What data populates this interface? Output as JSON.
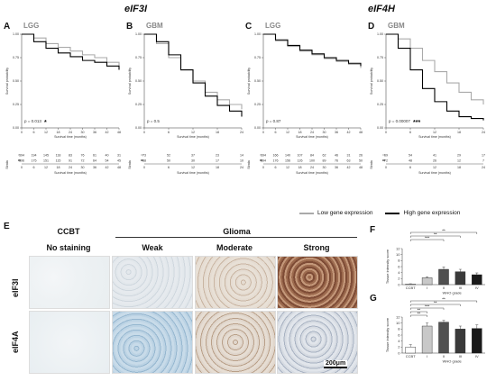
{
  "titles": {
    "left": "eIF3I",
    "right": "eIF4H"
  },
  "panels": [
    {
      "letter": "A",
      "label": "LGG",
      "pvalue": "p = 0.013",
      "stars": "*",
      "risk_low": [
        "194",
        "194",
        "145",
        "118",
        "83",
        "76",
        "61",
        "40",
        "31"
      ],
      "risk_high": [
        "196",
        "175",
        "151",
        "115",
        "91",
        "72",
        "64",
        "54",
        "45"
      ],
      "xticks": [
        "0",
        "6",
        "12",
        "18",
        "24",
        "30",
        "36",
        "42",
        "48"
      ],
      "ytitle": "Survival probability",
      "xtitle": "Survival time (months)"
    },
    {
      "letter": "B",
      "label": "GBM",
      "pvalue": "p = 0.5",
      "stars": "",
      "risk_low": [
        "73",
        "52",
        "37",
        "23",
        "14"
      ],
      "risk_high": [
        "68",
        "50",
        "30",
        "17",
        "10"
      ],
      "xticks": [
        "0",
        "6",
        "12",
        "18",
        "24"
      ],
      "ytitle": "Survival probability",
      "xtitle": "Survival time (months)"
    },
    {
      "letter": "C",
      "label": "LGG",
      "pvalue": "p = 0.87",
      "stars": "",
      "risk_low": [
        "194",
        "166",
        "140",
        "107",
        "84",
        "62",
        "46",
        "31",
        "26"
      ],
      "risk_high": [
        "194",
        "176",
        "156",
        "126",
        "100",
        "89",
        "76",
        "63",
        "50"
      ],
      "xticks": [
        "0",
        "6",
        "12",
        "18",
        "24",
        "30",
        "36",
        "42",
        "48"
      ],
      "ytitle": "Survival probability",
      "xtitle": "Survival time (months)"
    },
    {
      "letter": "D",
      "label": "GBM",
      "pvalue": "p = 0.00007",
      "stars": "***",
      "risk_low": [
        "69",
        "54",
        "41",
        "29",
        "17"
      ],
      "risk_high": [
        "72",
        "48",
        "26",
        "12",
        "7"
      ],
      "xticks": [
        "0",
        "6",
        "12",
        "18",
        "24"
      ],
      "ytitle": "Survival probability",
      "xtitle": "Survival time (months)"
    }
  ],
  "yticks": [
    "0.00",
    "0.25",
    "0.50",
    "0.75",
    "1.00"
  ],
  "strata_label": "Strata",
  "legend": {
    "low": "Low gene expression",
    "high": "High gene expression"
  },
  "colors": {
    "low": "#aaaaaa",
    "high": "#000000"
  },
  "ihc": {
    "letter": "E",
    "group_ccbt": "CCBT",
    "group_glioma": "Glioma",
    "columns": [
      "No staining",
      "Weak",
      "Moderate",
      "Strong"
    ],
    "rows": [
      "eIF3I",
      "eIF4A"
    ],
    "scale": "200μm"
  },
  "chart_data": [
    {
      "type": "bar",
      "letter": "F",
      "categories": [
        "CCBT",
        "I",
        "II",
        "III",
        "IV"
      ],
      "values": [
        0.2,
        2.3,
        5.1,
        4.3,
        3.3
      ],
      "errors": [
        0.1,
        0.3,
        0.8,
        0.8,
        0.6
      ],
      "colors": [
        "#ffffff",
        "#c8c8c8",
        "#505050",
        "#3a3a3a",
        "#1a1a1a"
      ],
      "ylabel": "Tissue intensity score",
      "xlabel": "WHO grade",
      "ylim": [
        0,
        12
      ],
      "yticks": [
        "0",
        "2",
        "4",
        "6",
        "8",
        "10",
        "12"
      ],
      "significance": [
        "**",
        "**",
        "***"
      ]
    },
    {
      "type": "bar",
      "letter": "G",
      "categories": [
        "CCBT",
        "I",
        "II",
        "III",
        "IV"
      ],
      "values": [
        2.0,
        9.0,
        10.3,
        8.0,
        8.2
      ],
      "errors": [
        0.8,
        1.0,
        0.6,
        1.0,
        1.2
      ],
      "colors": [
        "#ffffff",
        "#c8c8c8",
        "#505050",
        "#3a3a3a",
        "#1a1a1a"
      ],
      "ylabel": "Tissue intensity score",
      "xlabel": "WHO grade",
      "ylim": [
        0,
        12
      ],
      "yticks": [
        "0",
        "2",
        "4",
        "6",
        "8",
        "10",
        "12"
      ],
      "significance": [
        "**",
        "**",
        "***",
        "**",
        "**"
      ]
    }
  ]
}
